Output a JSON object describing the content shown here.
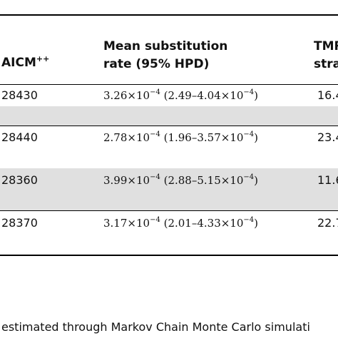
{
  "table": {
    "headers": {
      "aicm": {
        "text": "AICM",
        "sup": "++"
      },
      "rate_line1": "Mean substitution",
      "rate_line2": "rate (95% HPD)",
      "tmr_line1": "TMR",
      "tmr_line2": "stra"
    },
    "rows": [
      {
        "aicm": "28430",
        "mean": "3.26",
        "low": "2.49",
        "high": "4.04",
        "tmr": "16.4"
      },
      {
        "aicm": "28440",
        "mean": "2.78",
        "low": "1.96",
        "high": "3.57",
        "tmr": "23.4"
      },
      {
        "aicm": "28360",
        "mean": "3.99",
        "low": "2.88",
        "high": "5.15",
        "tmr": "11.6"
      },
      {
        "aicm": "28370",
        "mean": "3.17",
        "low": "2.01",
        "high": "4.33",
        "tmr": "22.7"
      }
    ],
    "sci": {
      "times": "×10",
      "exp": "−4"
    }
  },
  "footnote": "estimated through Markov Chain Monte Carlo simulati"
}
